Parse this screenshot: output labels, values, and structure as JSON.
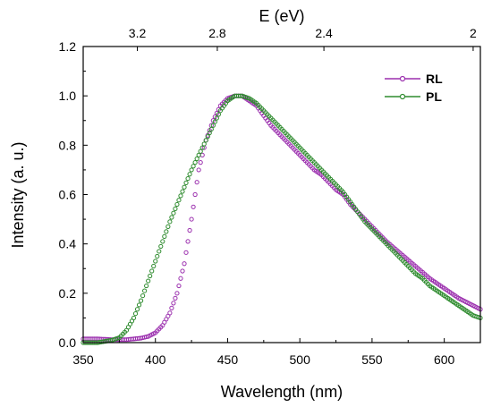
{
  "chart_data": {
    "type": "scatter",
    "xlabel": "Wavelength (nm)",
    "ylabel": "Intensity (a. u.)",
    "top_xlabel": "E (eV)",
    "xlim": [
      350,
      625
    ],
    "ylim": [
      0,
      1.2
    ],
    "x_ticks": [
      350,
      400,
      450,
      500,
      550,
      600
    ],
    "y_ticks": [
      0.0,
      0.2,
      0.4,
      0.6,
      0.8,
      1.0,
      1.2
    ],
    "x_tick_labels": [
      "350",
      "400",
      "450",
      "500",
      "550",
      "600"
    ],
    "y_tick_labels": [
      "0.0",
      "0.2",
      "0.4",
      "0.6",
      "0.8",
      "1.0",
      "1.2"
    ],
    "top_ticks": [
      {
        "energy": 3.2,
        "label": "3.2"
      },
      {
        "energy": 2.8,
        "label": "2.8"
      },
      {
        "energy": 2.4,
        "label": "2.4"
      },
      {
        "energy": 2.0,
        "label": "2"
      }
    ],
    "legend_position": "top-right",
    "grid": false,
    "series": [
      {
        "name": "RL",
        "color": "#9b2fae",
        "marker": "open-circle",
        "x": [
          350,
          360,
          370,
          380,
          390,
          395,
          400,
          405,
          410,
          415,
          420,
          425,
          430,
          435,
          440,
          445,
          450,
          455,
          460,
          465,
          470,
          475,
          480,
          485,
          490,
          495,
          500,
          505,
          510,
          515,
          520,
          525,
          530,
          535,
          540,
          545,
          550,
          555,
          560,
          565,
          570,
          575,
          580,
          585,
          590,
          595,
          600,
          605,
          610,
          615,
          620,
          625
        ],
        "y": [
          0.015,
          0.015,
          0.012,
          0.012,
          0.018,
          0.025,
          0.04,
          0.07,
          0.12,
          0.2,
          0.32,
          0.5,
          0.7,
          0.82,
          0.9,
          0.96,
          0.99,
          1.0,
          1.0,
          0.98,
          0.96,
          0.92,
          0.88,
          0.85,
          0.82,
          0.79,
          0.76,
          0.73,
          0.7,
          0.68,
          0.65,
          0.62,
          0.6,
          0.56,
          0.53,
          0.5,
          0.47,
          0.44,
          0.41,
          0.385,
          0.36,
          0.335,
          0.31,
          0.285,
          0.26,
          0.24,
          0.22,
          0.2,
          0.18,
          0.165,
          0.15,
          0.135
        ]
      },
      {
        "name": "PL",
        "color": "#2e8b2e",
        "marker": "open-circle",
        "x": [
          350,
          360,
          365,
          370,
          375,
          380,
          385,
          390,
          395,
          400,
          405,
          410,
          415,
          420,
          425,
          430,
          435,
          440,
          445,
          450,
          455,
          460,
          465,
          470,
          475,
          480,
          485,
          490,
          495,
          500,
          505,
          510,
          515,
          520,
          525,
          530,
          535,
          540,
          545,
          550,
          555,
          560,
          565,
          570,
          575,
          580,
          585,
          590,
          595,
          600,
          605,
          610,
          615,
          620,
          625
        ],
        "y": [
          0.0,
          0.0,
          0.005,
          0.01,
          0.02,
          0.05,
          0.1,
          0.17,
          0.25,
          0.33,
          0.41,
          0.49,
          0.56,
          0.63,
          0.7,
          0.76,
          0.82,
          0.88,
          0.94,
          0.98,
          1.0,
          1.0,
          0.99,
          0.97,
          0.94,
          0.91,
          0.88,
          0.85,
          0.82,
          0.79,
          0.76,
          0.73,
          0.7,
          0.67,
          0.64,
          0.61,
          0.57,
          0.53,
          0.49,
          0.46,
          0.43,
          0.4,
          0.37,
          0.34,
          0.31,
          0.28,
          0.26,
          0.23,
          0.21,
          0.19,
          0.17,
          0.15,
          0.13,
          0.11,
          0.1
        ]
      }
    ]
  }
}
